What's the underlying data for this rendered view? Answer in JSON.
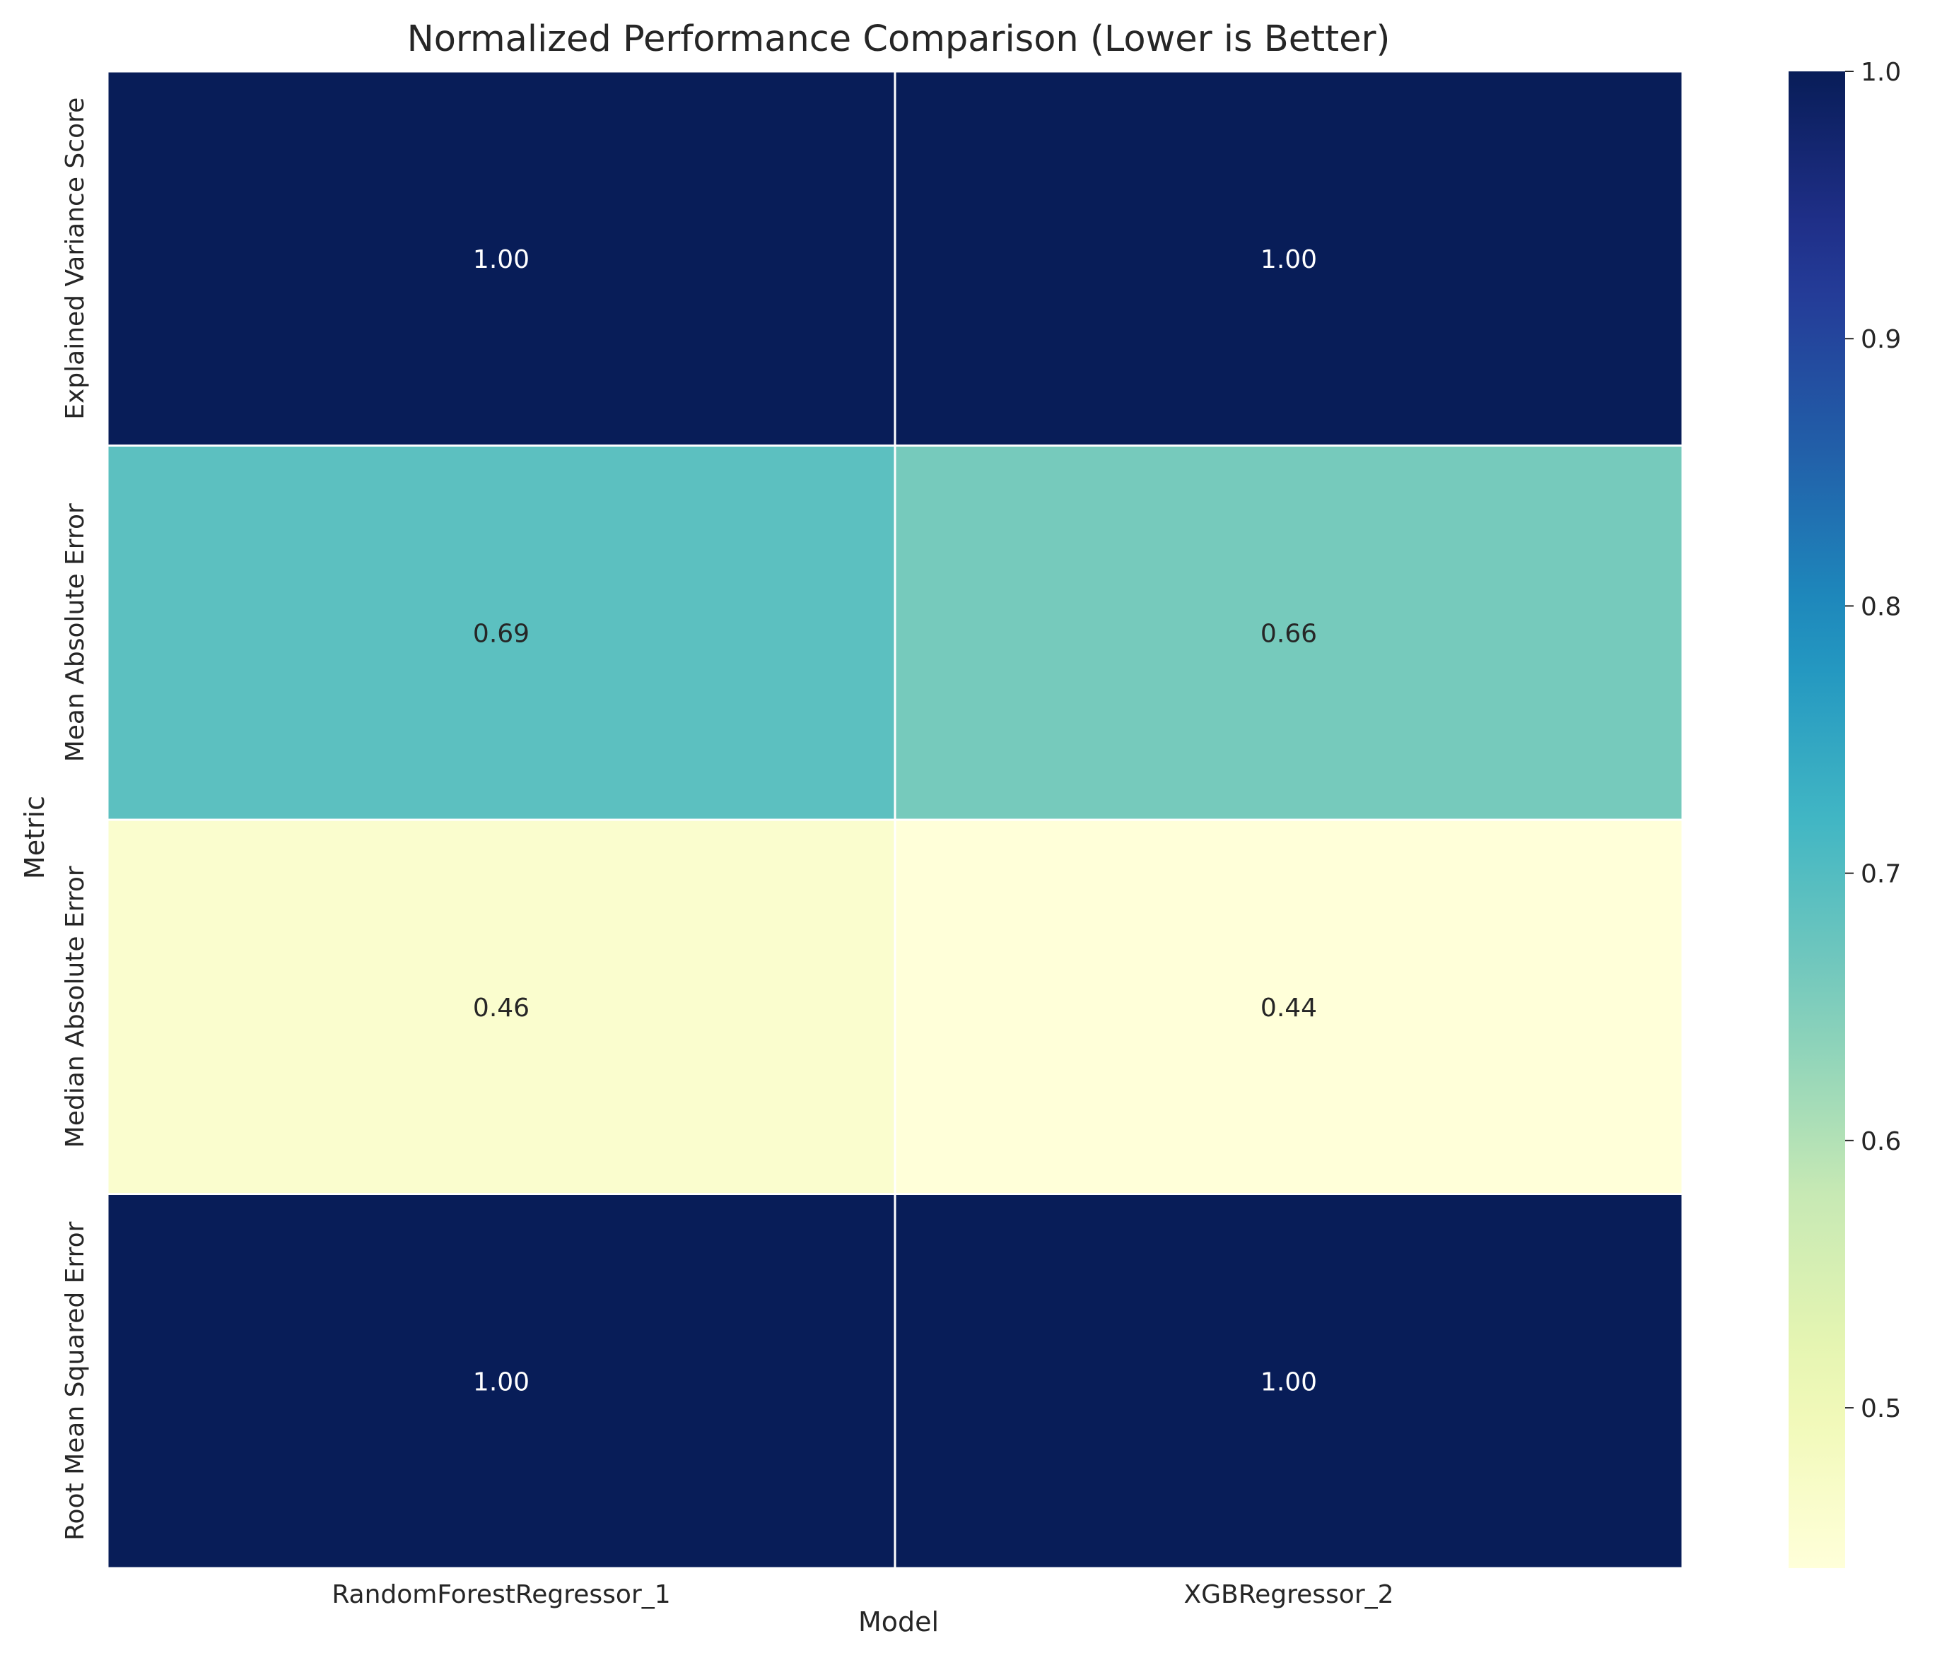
{
  "chart_data": {
    "type": "heatmap",
    "title": "Normalized Performance Comparison (Lower is Better)",
    "xlabel": "Model",
    "ylabel": "Metric",
    "x_categories": [
      "RandomForestRegressor_1",
      "XGBRegressor_2"
    ],
    "y_categories": [
      "Explained Variance Score",
      "Mean Absolute Error",
      "Median Absolute Error",
      "Root Mean Squared Error"
    ],
    "values": [
      [
        1.0,
        1.0
      ],
      [
        0.69,
        0.66
      ],
      [
        0.46,
        0.44
      ],
      [
        1.0,
        1.0
      ]
    ],
    "value_format": "2 decimals",
    "colormap": "YlGnBu",
    "color_range": [
      0.44,
      1.0
    ],
    "colorbar_ticks": [
      "0.5",
      "0.6",
      "0.7",
      "0.8",
      "0.9",
      "1.0"
    ],
    "colorbar_tick_values": [
      0.5,
      0.6,
      0.7,
      0.8,
      0.9,
      1.0
    ],
    "grid_line_color": "#ffffff",
    "light_text_color": "#ffffff",
    "dark_text_color": "#262626"
  }
}
